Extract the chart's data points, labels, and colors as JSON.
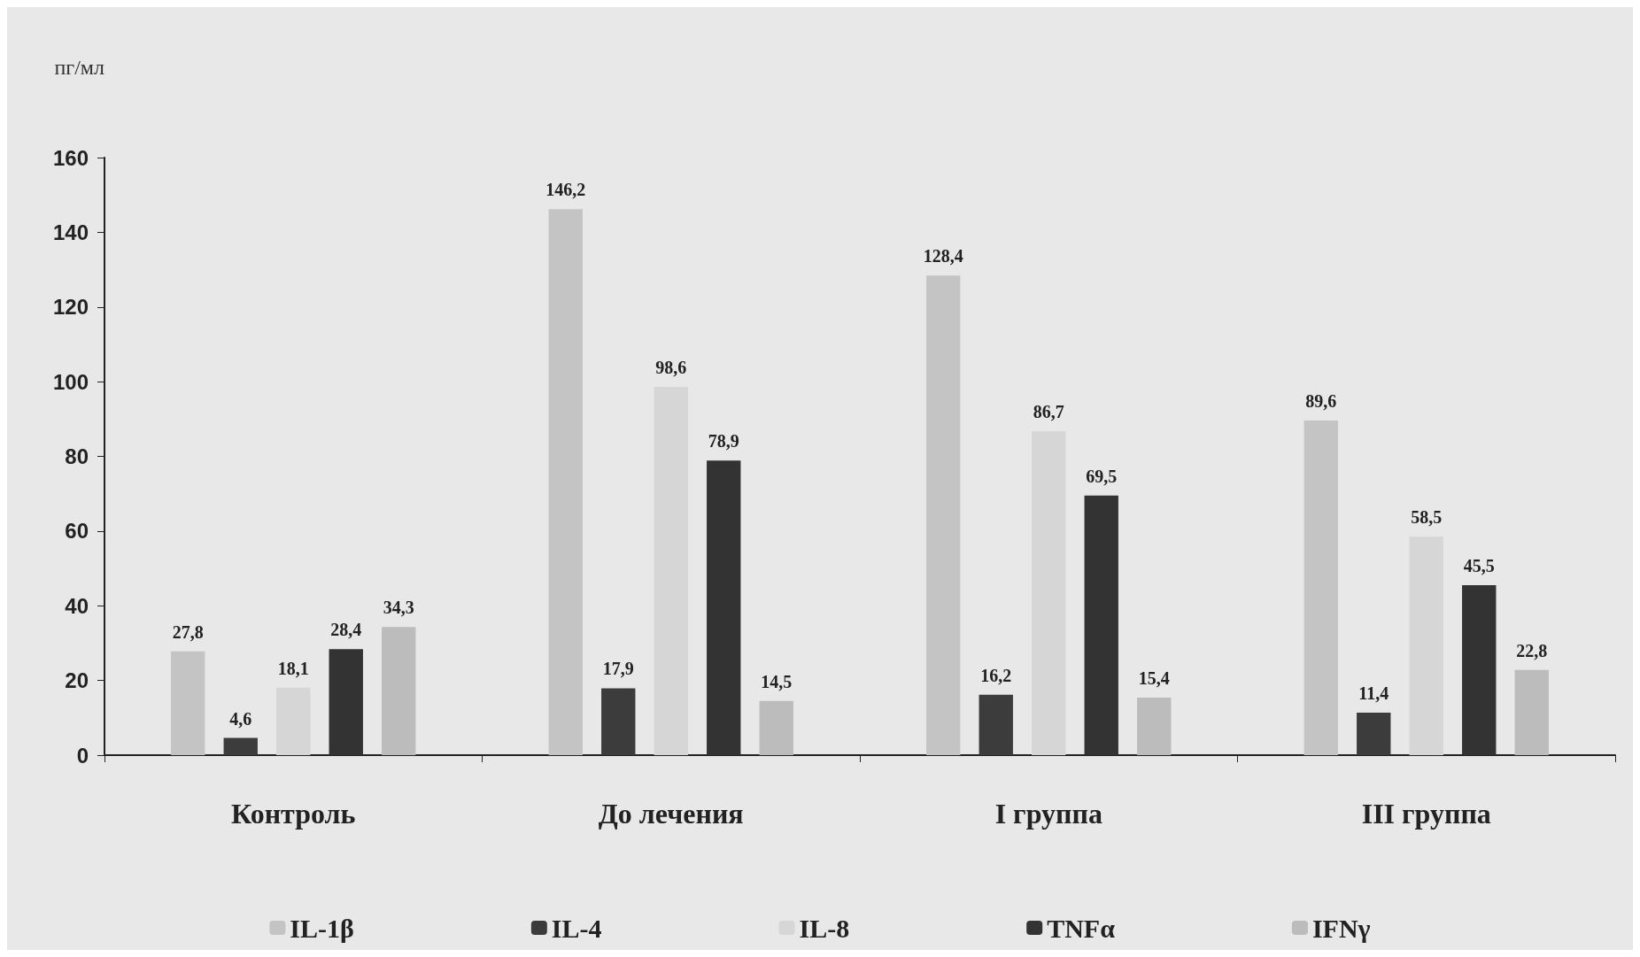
{
  "chart_data": {
    "type": "bar",
    "ylabel": "пг/мл",
    "categories": [
      "Контроль",
      "До лечения",
      "I группа",
      "III группа"
    ],
    "series": [
      {
        "name": "IL-1β",
        "color": "#c4c4c4",
        "values": [
          27.8,
          146.2,
          128.4,
          89.6
        ],
        "value_labels": [
          "27,8",
          "146,2",
          "128,4",
          "89,6"
        ]
      },
      {
        "name": "IL-4",
        "color": "#3c3c3c",
        "values": [
          4.6,
          17.9,
          16.2,
          11.4
        ],
        "value_labels": [
          "4,6",
          "17,9",
          "16,2",
          "11,4"
        ]
      },
      {
        "name": "IL-8",
        "color": "#d6d6d6",
        "values": [
          18.1,
          98.6,
          86.7,
          58.5
        ],
        "value_labels": [
          "18,1",
          "98,6",
          "86,7",
          "58,5"
        ]
      },
      {
        "name": "TNFα",
        "color": "#333333",
        "values": [
          28.4,
          78.9,
          69.5,
          45.5
        ],
        "value_labels": [
          "28,4",
          "78,9",
          "69,5",
          "45,5"
        ]
      },
      {
        "name": "IFNγ",
        "color": "#bcbcbc",
        "values": [
          34.3,
          14.5,
          15.4,
          22.8
        ],
        "value_labels": [
          "34,3",
          "14,5",
          "15,4",
          "22,8"
        ]
      }
    ],
    "ylim": [
      0,
      160
    ],
    "yticks": [
      0,
      20,
      40,
      60,
      80,
      100,
      120,
      140,
      160
    ],
    "grid": false,
    "legend": "bottom"
  }
}
